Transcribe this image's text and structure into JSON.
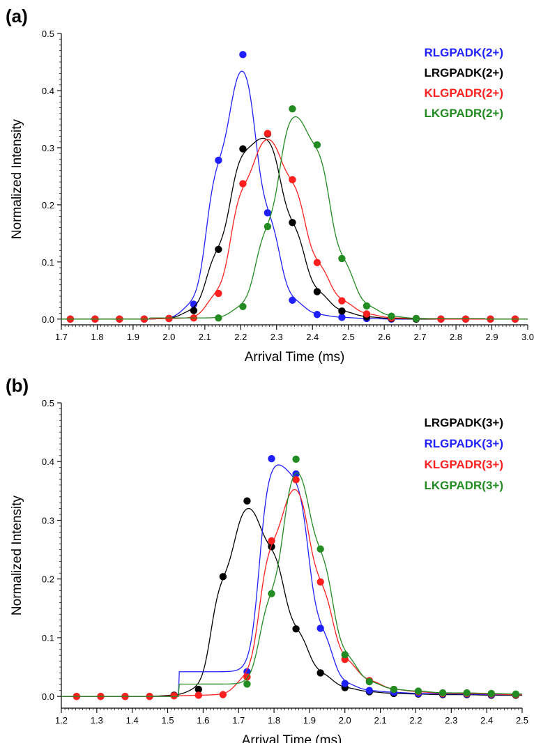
{
  "chart_data": [
    {
      "type": "line",
      "panel_label": "(a)",
      "xlabel": "Arrival Time (ms)",
      "ylabel": "Normalized Intensity",
      "xlim": [
        1.7,
        3.0
      ],
      "ylim": [
        -0.01,
        0.5
      ],
      "x_ticks": [
        "1.7",
        "1.8",
        "1.9",
        "2.0",
        "2.1",
        "2.2",
        "2.3",
        "2.4",
        "2.5",
        "2.6",
        "2.7",
        "2.8",
        "2.9",
        "3.0"
      ],
      "y_ticks": [
        "0.0",
        "0.1",
        "0.2",
        "0.3",
        "0.4",
        "0.5"
      ],
      "grid": false,
      "legend_position": "top-right",
      "series": [
        {
          "name": "RLGPADK(2+)",
          "color": "#1f1fff",
          "x": [
            1.725,
            1.794,
            1.862,
            1.931,
            2.0,
            2.069,
            2.138,
            2.206,
            2.275,
            2.344,
            2.413,
            2.482,
            2.551,
            2.62,
            2.689,
            2.758,
            2.827,
            2.896,
            2.965
          ],
          "y": [
            0,
            0,
            0,
            0,
            0.001,
            0.026,
            0.278,
            0.463,
            0.186,
            0.033,
            0.008,
            0.003,
            0.001,
            0,
            0,
            0,
            0,
            0,
            0
          ]
        },
        {
          "name": "LRGPADK(2+)",
          "color": "#000000",
          "x": [
            1.725,
            1.794,
            1.862,
            1.931,
            2.0,
            2.069,
            2.138,
            2.206,
            2.275,
            2.344,
            2.413,
            2.482,
            2.551,
            2.62,
            2.689,
            2.758,
            2.827,
            2.896,
            2.965
          ],
          "y": [
            0,
            0,
            0,
            0,
            0.001,
            0.015,
            0.122,
            0.298,
            0.324,
            0.169,
            0.048,
            0.014,
            0.004,
            0.001,
            0,
            0,
            0,
            0,
            0
          ]
        },
        {
          "name": "KLGPADR(2+)",
          "color": "#ff1f1f",
          "x": [
            1.725,
            1.794,
            1.862,
            1.931,
            2.0,
            2.069,
            2.138,
            2.206,
            2.275,
            2.344,
            2.413,
            2.482,
            2.551,
            2.62,
            2.689,
            2.758,
            2.827,
            2.896,
            2.965
          ],
          "y": [
            0,
            0,
            0,
            0,
            0.001,
            0.002,
            0.045,
            0.237,
            0.325,
            0.244,
            0.099,
            0.032,
            0.009,
            0.002,
            0.001,
            0,
            0,
            0,
            0
          ]
        },
        {
          "name": "LKGPADR(2+)",
          "color": "#228b22",
          "x": [
            2.138,
            2.206,
            2.275,
            2.344,
            2.413,
            2.482,
            2.551,
            2.62,
            2.689
          ],
          "y": [
            0.002,
            0.022,
            0.162,
            0.368,
            0.305,
            0.106,
            0.023,
            0.005,
            0.001
          ]
        }
      ]
    },
    {
      "type": "line",
      "panel_label": "(b)",
      "xlabel": "Arrival Time (ms)",
      "ylabel": "Normalized Intensity",
      "xlim": [
        1.2,
        2.5
      ],
      "ylim": [
        -0.02,
        0.5
      ],
      "x_ticks": [
        "1.2",
        "1.3",
        "1.4",
        "1.5",
        "1.6",
        "1.7",
        "1.8",
        "1.9",
        "2.0",
        "2.1",
        "2.2",
        "2.3",
        "2.4",
        "2.5"
      ],
      "y_ticks": [
        "0.0",
        "0.1",
        "0.2",
        "0.3",
        "0.4",
        "0.5"
      ],
      "grid": false,
      "legend_position": "top-right",
      "series": [
        {
          "name": "LRGPADK(3+)",
          "color": "#000000",
          "x": [
            1.243,
            1.311,
            1.38,
            1.449,
            1.518,
            1.587,
            1.656,
            1.724,
            1.793,
            1.862,
            1.931,
            2.0,
            2.069,
            2.138,
            2.207,
            2.276,
            2.344,
            2.413,
            2.482
          ],
          "y": [
            0,
            0,
            0,
            0,
            0.002,
            0.012,
            0.204,
            0.333,
            0.255,
            0.115,
            0.04,
            0.015,
            0.008,
            0.005,
            0.004,
            0.003,
            0.003,
            0.002,
            0.002
          ]
        },
        {
          "name": "RLGPADK(3+)",
          "color": "#1f1fff",
          "x": [
            1.724,
            1.793,
            1.862,
            1.931,
            2.0,
            2.069,
            2.138,
            2.207,
            2.276,
            2.344,
            2.413,
            2.482
          ],
          "y": [
            0.042,
            0.405,
            0.379,
            0.116,
            0.022,
            0.01,
            0.007,
            0.005,
            0.004,
            0.004,
            0.003,
            0.003
          ]
        },
        {
          "name": "KLGPADR(3+)",
          "color": "#ff1f1f",
          "x": [
            1.243,
            1.311,
            1.38,
            1.449,
            1.518,
            1.587,
            1.656,
            1.724,
            1.793,
            1.862,
            1.931,
            2.0,
            2.069,
            2.138,
            2.207,
            2.276,
            2.344,
            2.413,
            2.482
          ],
          "y": [
            0,
            0,
            0,
            0,
            0.001,
            0.002,
            0.003,
            0.033,
            0.265,
            0.369,
            0.195,
            0.063,
            0.027,
            0.012,
            0.008,
            0.005,
            0.005,
            0.004,
            0.003
          ]
        },
        {
          "name": "LKGPADR(3+)",
          "color": "#228b22",
          "x": [
            1.724,
            1.793,
            1.862,
            1.931,
            2.0,
            2.069,
            2.138,
            2.207,
            2.276,
            2.344,
            2.413,
            2.482
          ],
          "y": [
            0.021,
            0.175,
            0.404,
            0.251,
            0.071,
            0.025,
            0.012,
            0.009,
            0.006,
            0.006,
            0.005,
            0.004
          ]
        }
      ]
    }
  ]
}
